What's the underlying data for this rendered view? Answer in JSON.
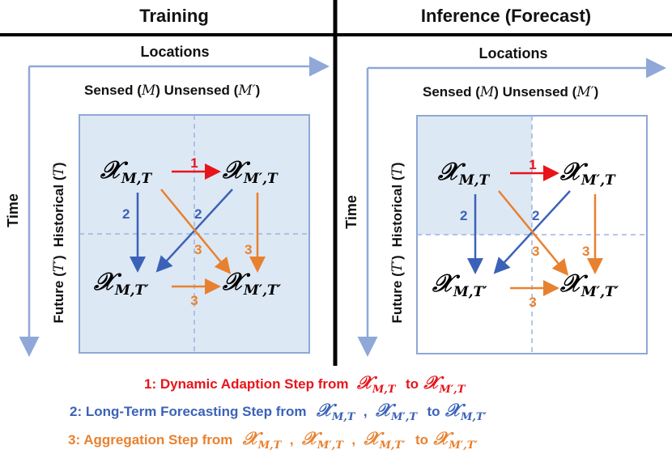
{
  "headers": {
    "left": "Training",
    "right": "Inference (Forecast)"
  },
  "axes": {
    "locations": "Locations",
    "time": "Time"
  },
  "columns": {
    "sensed": "Sensed (",
    "sensed_sym": "M",
    "unsensed": ") Unsensed (",
    "unsensed_sym": "M′",
    "close": ")"
  },
  "rows": {
    "historical": "Historical (",
    "historical_sym": "T",
    "future": "Future (",
    "future_sym": "T′",
    "close": ")"
  },
  "nodes": {
    "sym": "𝒳",
    "mt": "M,T",
    "mpt": "M′,T",
    "mtp": "M,T′",
    "mptp": "M′,T′"
  },
  "steps": {
    "s1": "1",
    "s2": "2",
    "s3": "3"
  },
  "legend": {
    "l1": {
      "text": "1: Dynamic Adaption Step from",
      "to": "to"
    },
    "l2": {
      "text": "2: Long-Term Forecasting Step from",
      "comma": ",",
      "to": "to"
    },
    "l3": {
      "text": "3: Aggregation Step from",
      "comma": ",",
      "to": "to"
    }
  },
  "colors": {
    "step1": "#e8141b",
    "step2": "#3b62b8",
    "step3": "#e8812f",
    "axis": "#8fa8d8",
    "box_fill": "#dde8f5",
    "box_stroke": "#8fa8d8"
  }
}
